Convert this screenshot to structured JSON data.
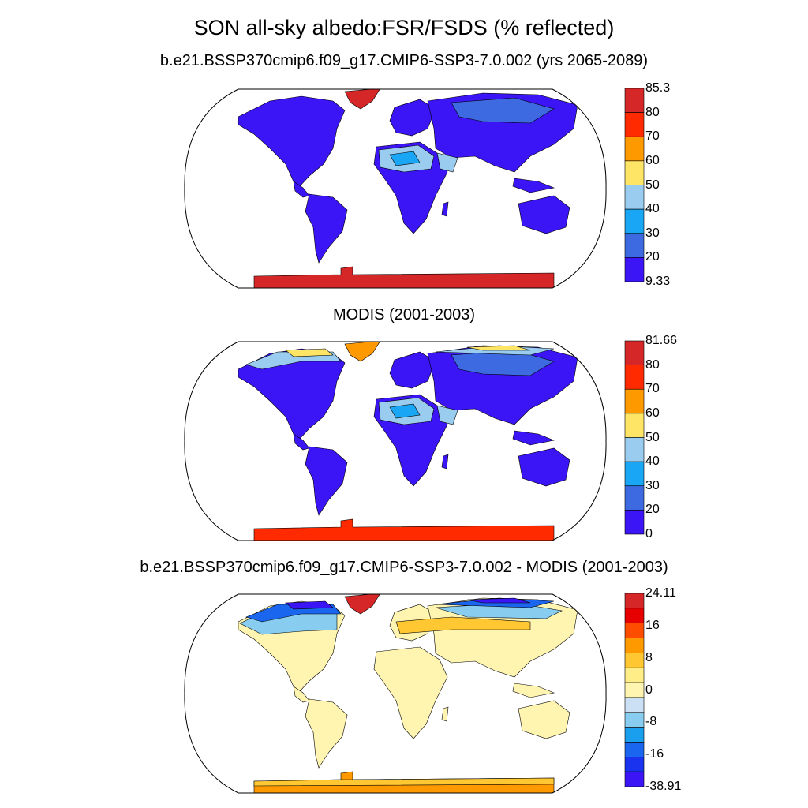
{
  "title": "SON all-sky albedo:FSR/FSDS (% reflected)",
  "panels": [
    {
      "title": "b.e21.BSSP370cmip6.f09_g17.CMIP6-SSP3-7.0.002 (yrs 2065-2089)",
      "colorbar": {
        "labels": [
          "85.3",
          "80",
          "70",
          "60",
          "50",
          "40",
          "30",
          "20",
          "9.33"
        ],
        "colors": [
          "#d62728",
          "#ff2a00",
          "#ff9900",
          "#ffe566",
          "#99ccee",
          "#19a6f5",
          "#3d6ae0",
          "#3b15f5"
        ]
      }
    },
    {
      "title": "MODIS (2001-2003)",
      "colorbar": {
        "labels": [
          "81.66",
          "80",
          "70",
          "60",
          "50",
          "40",
          "30",
          "20",
          "0"
        ],
        "colors": [
          "#d62728",
          "#ff2a00",
          "#ff9900",
          "#ffe566",
          "#99ccee",
          "#19a6f5",
          "#3d6ae0",
          "#3b15f5"
        ]
      }
    },
    {
      "title": "b.e21.BSSP370cmip6.f09_g17.CMIP6-SSP3-7.0.002 - MODIS (2001-2003)",
      "colorbar": {
        "labels": [
          "24.11",
          "16",
          "8",
          "0",
          "-8",
          "-16",
          "-38.91"
        ],
        "colors": [
          "#d62728",
          "#e60000",
          "#ff4d00",
          "#ff9900",
          "#ffc833",
          "#ffee88",
          "#fff5b0",
          "#cce0f5",
          "#88ccf0",
          "#1a9fee",
          "#1a66ee",
          "#1a33ee",
          "#3b15f5"
        ]
      }
    }
  ],
  "map_layers": {
    "panel1": {
      "land": "#3b15f5",
      "sahara": "#99ccee",
      "arabia": "#99ccee",
      "sahara_core": "#19a6f5",
      "siberia": "#3d6ae0",
      "greenland": "#d62728",
      "antarctica": "#d62728"
    },
    "panel2": {
      "land": "#3b15f5",
      "sahara": "#99ccee",
      "arabia": "#99ccee",
      "sahara_core": "#19a6f5",
      "siberia": "#3d6ae0",
      "arctic_rim": "#99ccee",
      "arctic_rim2": "#ffe566",
      "greenland": "#ff9900",
      "antarctica": "#ff2a00"
    },
    "panel3": {
      "land": "#fff5b0",
      "arctic": "#1a66ee",
      "arctic2": "#3b15f5",
      "subarctic": "#88ccf0",
      "eurasia_band": "#ffc833",
      "greenland": "#d62728",
      "antarctica": "#ff9900",
      "antarctica_edge": "#ffc833"
    }
  }
}
